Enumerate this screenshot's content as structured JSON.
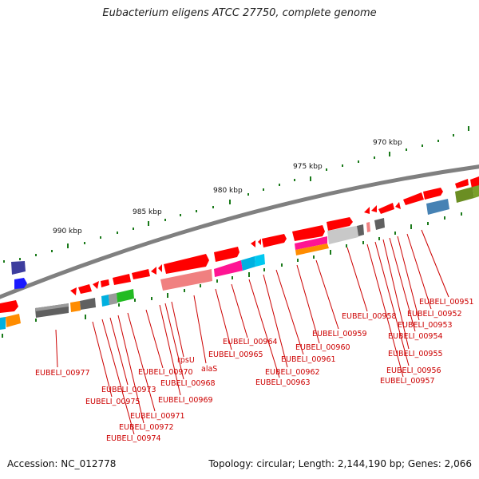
{
  "title": "Eubacterium eligens ATCC 27750, complete genome",
  "footer": {
    "accession": "Accession: NC_012778",
    "summary": "Topology: circular; Length: 2,144,190 bp; Genes: 2,066"
  },
  "ruler": [
    {
      "label": "970 kbp"
    },
    {
      "label": "975 kbp"
    },
    {
      "label": "980 kbp"
    },
    {
      "label": "985 kbp"
    },
    {
      "label": "990 kbp"
    }
  ],
  "gene_labels": [
    {
      "text": "EUBELI_00951"
    },
    {
      "text": "EUBELI_00952"
    },
    {
      "text": "EUBELI_00953"
    },
    {
      "text": "EUBELI_00954"
    },
    {
      "text": "EUBELI_00955"
    },
    {
      "text": "EUBELI_00956"
    },
    {
      "text": "EUBELI_00957"
    },
    {
      "text": "EUBELI_00958"
    },
    {
      "text": "EUBELI_00959"
    },
    {
      "text": "EUBELI_00960"
    },
    {
      "text": "EUBELI_00961"
    },
    {
      "text": "EUBELI_00962"
    },
    {
      "text": "EUBELI_00963"
    },
    {
      "text": "EUBELI_00964"
    },
    {
      "text": "EUBELI_00965"
    },
    {
      "text": "alaS"
    },
    {
      "text": "rpsU"
    },
    {
      "text": "EUBELI_00968"
    },
    {
      "text": "EUBELI_00969"
    },
    {
      "text": "EUBELI_00970"
    },
    {
      "text": "EUBELI_00971"
    },
    {
      "text": "EUBELI_00972"
    },
    {
      "text": "EUBELI_00973"
    },
    {
      "text": "EUBELI_00974"
    },
    {
      "text": "EUBELI_00975"
    },
    {
      "text": "EUBELI_00977"
    }
  ],
  "colors": {
    "gene": "#ff0000",
    "backbone": "#808080",
    "tick": "#1a7a1a",
    "label_line": "#cc0000"
  }
}
